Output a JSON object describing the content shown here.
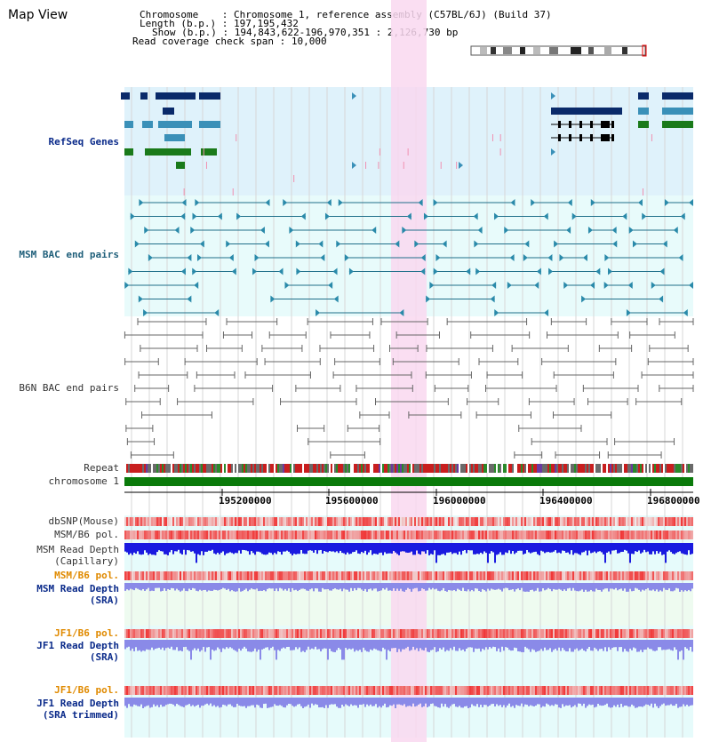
{
  "page": {
    "title": "Map View"
  },
  "header": {
    "chromosome_label": "Chromosome",
    "chromosome_value": "Chromosome 1, reference assembly (C57BL/6J) (Build 37)",
    "length_label": "Length (b.p.)",
    "length_value": "197,195,432",
    "show_label": "Show (b.p.)",
    "show_value": "194,843,622-196,970,351 : 2,126,730 bp",
    "coverage_label": "Read coverage check span",
    "coverage_value": "10,000"
  },
  "tracks": {
    "refseq": "RefSeq Genes",
    "msm_bac": "MSM BAC end pairs",
    "b6n_bac": "B6N BAC end pairs",
    "repeat": "Repeat",
    "chromosome": "chromosome 1",
    "dbsnp": "dbSNP(Mouse)",
    "msm_b6_pol": "MSM/B6 pol.",
    "msm_depth_cap_1": "MSM Read Depth",
    "msm_depth_cap_2": "(Capillary)",
    "msm_b6_pol_2": "MSM/B6 pol.",
    "msm_depth_sra_1": "MSM Read Depth",
    "msm_depth_sra_2": "(SRA)",
    "jf1_b6_pol": "JF1/B6 pol.",
    "jf1_depth_sra_1": "JF1 Read Depth",
    "jf1_depth_sra_2": "(SRA)",
    "jf1_b6_pol_2": "JF1/B6 pol.",
    "jf1_depth_trim_1": "JF1 Read Depth",
    "jf1_depth_trim_2": "(SRA trimmed)"
  },
  "ruler": {
    "ticks": [
      "195200000",
      "195600000",
      "196000000",
      "196400000",
      "196800000"
    ]
  },
  "colors": {
    "refseq_bg": "#dff2fb",
    "msm_bg": "#e8fbfb",
    "highlight": "#f9d8f0",
    "chromosome_bar": "#0a7a0a",
    "read_depth_dark": "#1a1ae0",
    "read_depth_light": "#8a8ae8"
  }
}
